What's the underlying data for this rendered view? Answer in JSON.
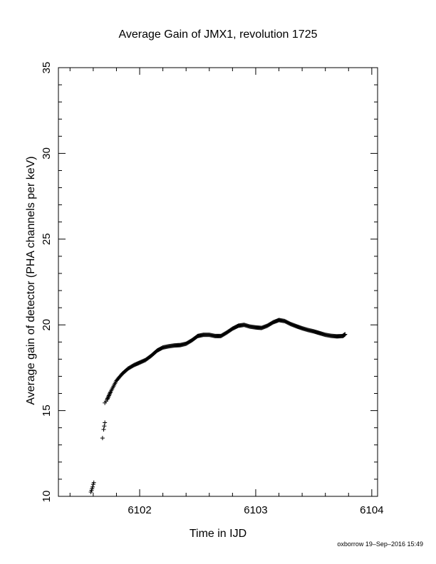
{
  "chart_data": {
    "type": "scatter",
    "title": "Average Gain of JMX1, revolution 1725",
    "xlabel": "Time in IJD",
    "ylabel": "Average gain of detector (PHA channels per keV)",
    "xlim": [
      6101.3,
      6104.05
    ],
    "ylim": [
      10,
      35
    ],
    "xticks": [
      6102,
      6103,
      6104
    ],
    "yticks": [
      10,
      15,
      20,
      25,
      30,
      35
    ],
    "marker": "plus",
    "marker_color": "#000000",
    "grid": false,
    "points": [
      [
        6101.58,
        10.25
      ],
      [
        6101.585,
        10.35
      ],
      [
        6101.59,
        10.45
      ],
      [
        6101.595,
        10.55
      ],
      [
        6101.6,
        10.7
      ],
      [
        6101.605,
        10.8
      ],
      [
        6101.68,
        13.4
      ],
      [
        6101.69,
        13.9
      ],
      [
        6101.695,
        14.1
      ],
      [
        6101.7,
        14.3
      ],
      [
        6101.7,
        15.45
      ],
      [
        6101.71,
        15.55
      ],
      [
        6101.72,
        15.65
      ]
    ],
    "curve": [
      [
        6101.72,
        15.65
      ],
      [
        6101.75,
        16.1
      ],
      [
        6101.8,
        16.75
      ],
      [
        6101.85,
        17.15
      ],
      [
        6101.9,
        17.45
      ],
      [
        6101.95,
        17.65
      ],
      [
        6102.0,
        17.8
      ],
      [
        6102.05,
        17.95
      ],
      [
        6102.1,
        18.2
      ],
      [
        6102.15,
        18.5
      ],
      [
        6102.2,
        18.68
      ],
      [
        6102.25,
        18.75
      ],
      [
        6102.3,
        18.8
      ],
      [
        6102.35,
        18.82
      ],
      [
        6102.4,
        18.9
      ],
      [
        6102.45,
        19.1
      ],
      [
        6102.5,
        19.35
      ],
      [
        6102.55,
        19.42
      ],
      [
        6102.6,
        19.42
      ],
      [
        6102.65,
        19.35
      ],
      [
        6102.7,
        19.35
      ],
      [
        6102.75,
        19.55
      ],
      [
        6102.8,
        19.78
      ],
      [
        6102.85,
        19.95
      ],
      [
        6102.9,
        20.0
      ],
      [
        6102.95,
        19.9
      ],
      [
        6103.0,
        19.85
      ],
      [
        6103.05,
        19.82
      ],
      [
        6103.1,
        19.95
      ],
      [
        6103.15,
        20.15
      ],
      [
        6103.2,
        20.28
      ],
      [
        6103.25,
        20.22
      ],
      [
        6103.3,
        20.05
      ],
      [
        6103.35,
        19.92
      ],
      [
        6103.4,
        19.8
      ],
      [
        6103.45,
        19.7
      ],
      [
        6103.5,
        19.62
      ],
      [
        6103.55,
        19.52
      ],
      [
        6103.6,
        19.42
      ],
      [
        6103.65,
        19.36
      ],
      [
        6103.7,
        19.33
      ],
      [
        6103.75,
        19.35
      ],
      [
        6103.77,
        19.45
      ]
    ]
  },
  "footer": {
    "text": "oxborrow 19–Sep–2016 15:49"
  }
}
